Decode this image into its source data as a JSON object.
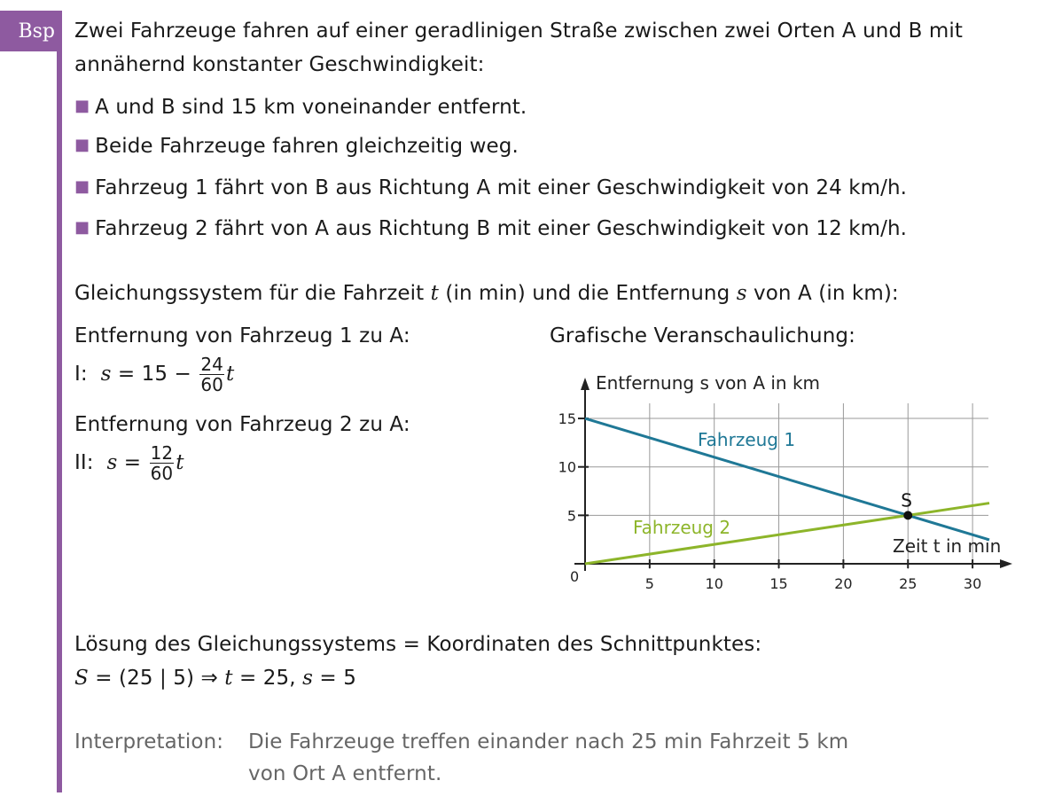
{
  "badge": "Bsp",
  "intro": "Zwei Fahrzeuge fahren auf einer geradlinigen Straße zwischen zwei Orten A und B mit",
  "intro2": "annähernd konstanter Geschwindigkeit:",
  "bullets": [
    "A und B sind 15 km voneinander entfernt.",
    "Beide Fahrzeuge fahren gleichzeitig weg.",
    "Fahrzeug 1 fährt von B aus Richtung A mit einer Geschwindigkeit von 24 km/h.",
    "Fahrzeug 2 fährt von A aus Richtung B mit einer Geschwindigkeit von 12 km/h."
  ],
  "system": {
    "pre": "Gleichungssystem für die Fahrzeit ",
    "t": "t",
    "mid": " (in min) und die Entfernung ",
    "s": "s",
    "post": " von A (in km):"
  },
  "eq1": {
    "label": "Entfernung von Fahrzeug 1 zu A:",
    "roman": "I:",
    "lhs": "s",
    "rhs": " = 15 − ",
    "num": "24",
    "den": "60",
    "var": "t"
  },
  "eq2": {
    "label": "Entfernung von Fahrzeug 2 zu A:",
    "roman": "II:",
    "lhs": "s",
    "rhs": " = ",
    "num": "12",
    "den": "60",
    "var": "t"
  },
  "graph_title": "Grafische Veranschaulichung:",
  "solution": {
    "line1": "Lösung des Gleichungssystems = Koordinaten des Schnittpunktes:",
    "line2a": "S",
    "line2b": " = (25 | 5)  ⇒  ",
    "line2c": "t",
    "line2d": " = 25, ",
    "line2e": "s",
    "line2f": " = 5"
  },
  "interpretation": {
    "label": "Interpretation:",
    "line1": "Die Fahrzeuge treffen einander nach 25 min Fahrzeit 5 km",
    "line2": "von Ort A entfernt."
  },
  "colors": {
    "accent": "#8e5aa0",
    "vehicle1": "#1f7896",
    "vehicle2": "#8db52a"
  },
  "chart_data": {
    "type": "line",
    "ylabel": "Entfernung s von A in km",
    "xlabel": "Zeit t in min",
    "origin_label": "0",
    "xticks": [
      5,
      10,
      15,
      20,
      25,
      30
    ],
    "yticks": [
      5,
      10,
      15
    ],
    "xlim": [
      0,
      31.3
    ],
    "ylim": [
      0,
      17
    ],
    "grid": true,
    "series": [
      {
        "name": "Fahrzeug 1",
        "x": [
          0,
          31.3
        ],
        "y": [
          15,
          2.48
        ]
      },
      {
        "name": "Fahrzeug 2",
        "x": [
          0,
          31.3
        ],
        "y": [
          0,
          6.26
        ]
      }
    ],
    "point": {
      "label": "S",
      "x": 25,
      "y": 5
    }
  }
}
